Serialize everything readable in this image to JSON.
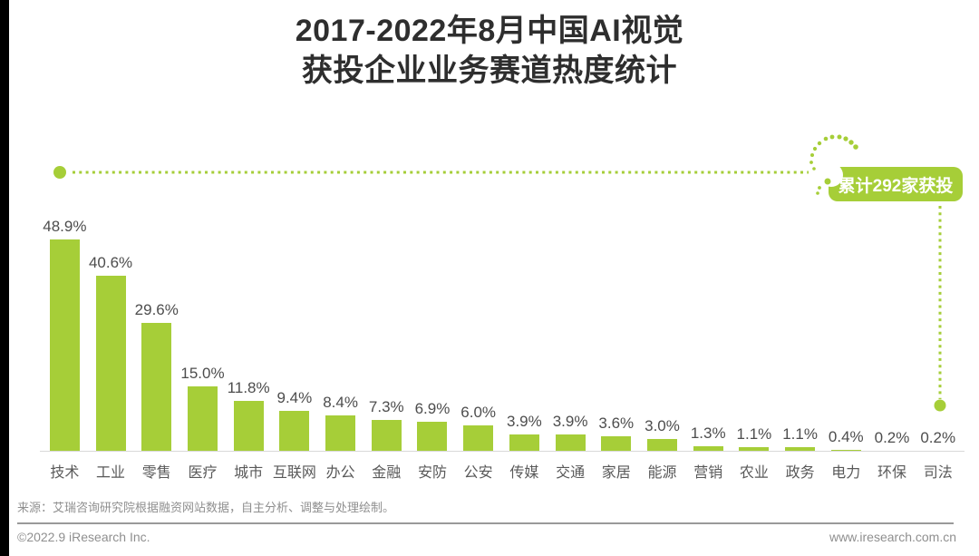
{
  "title": {
    "line1": "2017-2022年8月中国AI视觉",
    "line2": "获投企业业务赛道热度统计"
  },
  "annotation": {
    "badge_label": "累计292家获投"
  },
  "chart_data": {
    "type": "bar",
    "title": "2017-2022年8月中国AI视觉获投企业业务赛道热度统计",
    "categories": [
      "技术",
      "工业",
      "零售",
      "医疗",
      "城市",
      "互联网",
      "办公",
      "金融",
      "安防",
      "公安",
      "传媒",
      "交通",
      "家居",
      "能源",
      "营销",
      "农业",
      "政务",
      "电力",
      "环保",
      "司法"
    ],
    "values": [
      48.9,
      40.6,
      29.6,
      15.0,
      11.8,
      9.4,
      8.4,
      7.3,
      6.9,
      6.0,
      3.9,
      3.9,
      3.6,
      3.0,
      1.3,
      1.1,
      1.1,
      0.4,
      0.2,
      0.2
    ],
    "value_suffix": "%",
    "xlabel": "",
    "ylabel": "",
    "ylim": [
      0,
      50
    ],
    "grid": false,
    "legend": false,
    "annotation": "累计292家获投",
    "bar_color": "#a6ce38"
  },
  "footer": {
    "source": "来源：艾瑞咨询研究院根据融资网站数据，自主分析、调整与处理绘制。",
    "copyright": "©2022.9 iResearch Inc.",
    "website": "www.iresearch.com.cn"
  },
  "colors": {
    "brand_green": "#a6ce38",
    "title_text": "#2e2e2e",
    "value_label_text": "#4d4d4d",
    "category_text": "#595959",
    "footer_text": "#8f8f8f"
  }
}
